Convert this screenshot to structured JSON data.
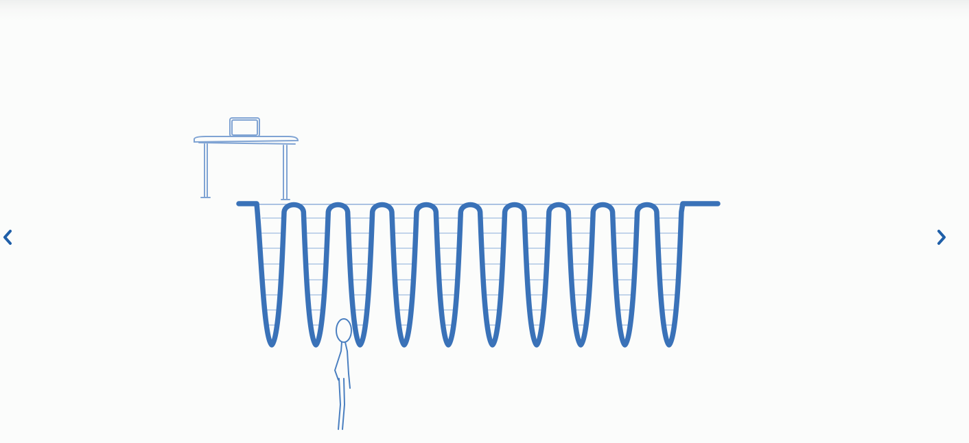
{
  "carousel": {
    "prev_icon": "chevron-left-icon",
    "next_icon": "chevron-right-icon"
  },
  "illustration": {
    "description_icons": [
      "desk-icon",
      "laptop-icon",
      "stick-figure-icon"
    ],
    "colors": {
      "stroke_primary": "#3a72b8",
      "stroke_light": "#7fa3d3",
      "arrow": "#1f5fa8",
      "background": "#fbfcfb"
    },
    "loop_count": 10
  }
}
